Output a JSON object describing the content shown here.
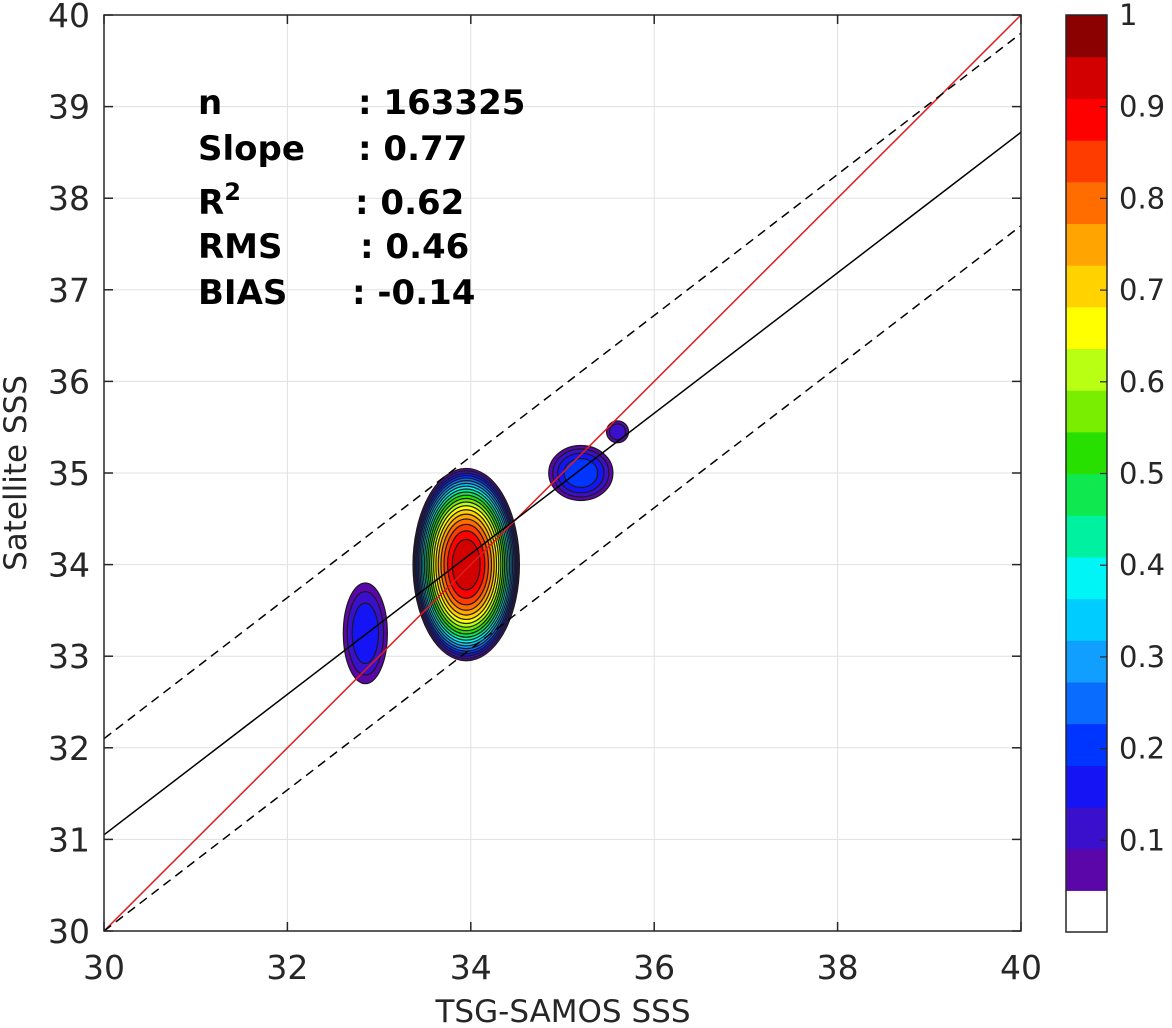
{
  "chart_data": {
    "type": "contour density scatter",
    "xlabel": "TSG-SAMOS SSS",
    "ylabel": "Satellite SSS",
    "xlim": [
      30,
      40
    ],
    "ylim": [
      30,
      40
    ],
    "x_ticks": [
      "30",
      "32",
      "34",
      "36",
      "38",
      "40"
    ],
    "y_ticks": [
      "30",
      "31",
      "32",
      "33",
      "34",
      "35",
      "36",
      "37",
      "38",
      "39",
      "40"
    ],
    "grid": true,
    "stats": [
      {
        "label": "n",
        "value": ": 163325"
      },
      {
        "label": "Slope",
        "value": ": 0.77"
      },
      {
        "label": "R",
        "sup": "2",
        "value": ": 0.62"
      },
      {
        "label": "RMS",
        "value": ": 0.46"
      },
      {
        "label": "BIAS",
        "value": ": -0.14"
      }
    ],
    "lines": [
      {
        "role": "one-to-one",
        "color": "#e31a1c",
        "style": "solid",
        "x": [
          30,
          40
        ],
        "y": [
          30,
          40
        ]
      },
      {
        "role": "regression",
        "color": "#000000",
        "style": "solid",
        "x": [
          30,
          40
        ],
        "y": [
          31.05,
          38.72
        ]
      },
      {
        "role": "upper-bound",
        "color": "#000000",
        "style": "dashed",
        "x": [
          30,
          40
        ],
        "y": [
          32.1,
          39.8
        ]
      },
      {
        "role": "lower-bound",
        "color": "#000000",
        "style": "dashed",
        "x": [
          30,
          40
        ],
        "y": [
          30.0,
          37.7
        ]
      }
    ],
    "density_clusters": [
      {
        "cx": 33.95,
        "cy": 34.0,
        "rx": 0.58,
        "ry": 1.05,
        "peak": 0.95
      },
      {
        "cx": 32.85,
        "cy": 33.25,
        "rx": 0.24,
        "ry": 0.55,
        "peak": 0.15
      },
      {
        "cx": 35.2,
        "cy": 35.0,
        "rx": 0.35,
        "ry": 0.3,
        "peak": 0.2
      },
      {
        "cx": 35.6,
        "cy": 35.45,
        "rx": 0.12,
        "ry": 0.12,
        "peak": 0.1
      }
    ],
    "colorbar": {
      "range": [
        0,
        1
      ],
      "ticks": [
        "0.1",
        "0.2",
        "0.3",
        "0.4",
        "0.5",
        "0.6",
        "0.7",
        "0.8",
        "0.9",
        "1"
      ],
      "colors": [
        "#ffffff",
        "#5b06a9",
        "#3a10cc",
        "#1414f4",
        "#0034ff",
        "#0a6cff",
        "#109eff",
        "#00ccff",
        "#00f6f6",
        "#00f2a0",
        "#10e850",
        "#28e000",
        "#7aee00",
        "#b8ff14",
        "#ffff00",
        "#ffd200",
        "#ffa400",
        "#ff6c00",
        "#ff3c00",
        "#ff0000",
        "#d30000",
        "#8b0000"
      ]
    }
  }
}
